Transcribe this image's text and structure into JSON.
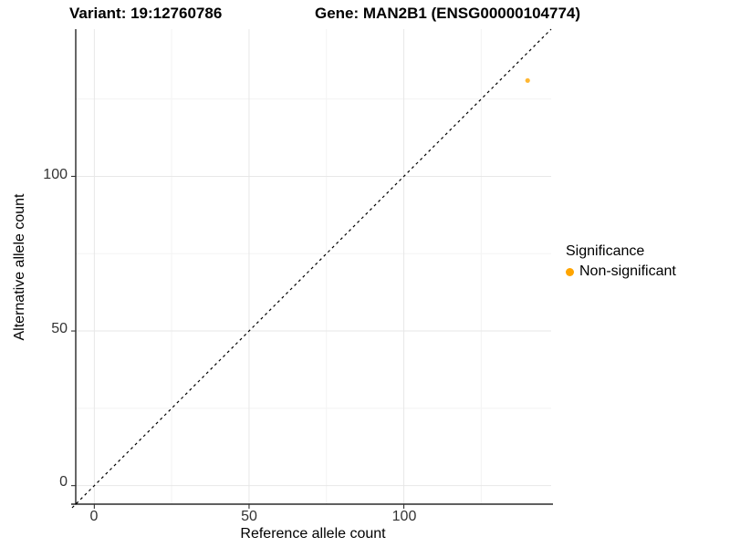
{
  "title": {
    "variant": "Variant: 19:12760786",
    "gene": "Gene: MAN2B1 (ENSG00000104774)"
  },
  "chart_data": {
    "type": "scatter",
    "title_left": "Variant: 19:12760786",
    "title_right": "Gene: MAN2B1 (ENSG00000104774)",
    "xlabel": "Reference allele count",
    "ylabel": "Alternative allele count",
    "xlim": [
      -6,
      147.6
    ],
    "ylim": [
      -6,
      147.6
    ],
    "x_major_ticks": [
      0,
      50,
      100
    ],
    "y_major_ticks": [
      0,
      50,
      100
    ],
    "x_minor_ticks": [
      25,
      75,
      125
    ],
    "y_minor_ticks": [
      25,
      75,
      125
    ],
    "x_tick_labels": [
      "0",
      "50",
      "100"
    ],
    "y_tick_labels": [
      "0",
      "50",
      "100"
    ],
    "grid": true,
    "identity_line": {
      "style": "dashed",
      "color": "#000000",
      "from": -6,
      "to": 147.6
    },
    "points": [
      {
        "x": 140,
        "y": 131,
        "series": "Non-significant",
        "color": "#FFA500",
        "opacity": 0.8
      }
    ],
    "legend": {
      "title": "Significance",
      "position": "right",
      "entries": [
        {
          "label": "Non-significant",
          "color": "#FFA500"
        }
      ]
    }
  },
  "colors": {
    "grid_major": "#E7E7E7",
    "grid_minor": "#F3F3F3",
    "axis": "#000000",
    "tick": "#333333"
  }
}
